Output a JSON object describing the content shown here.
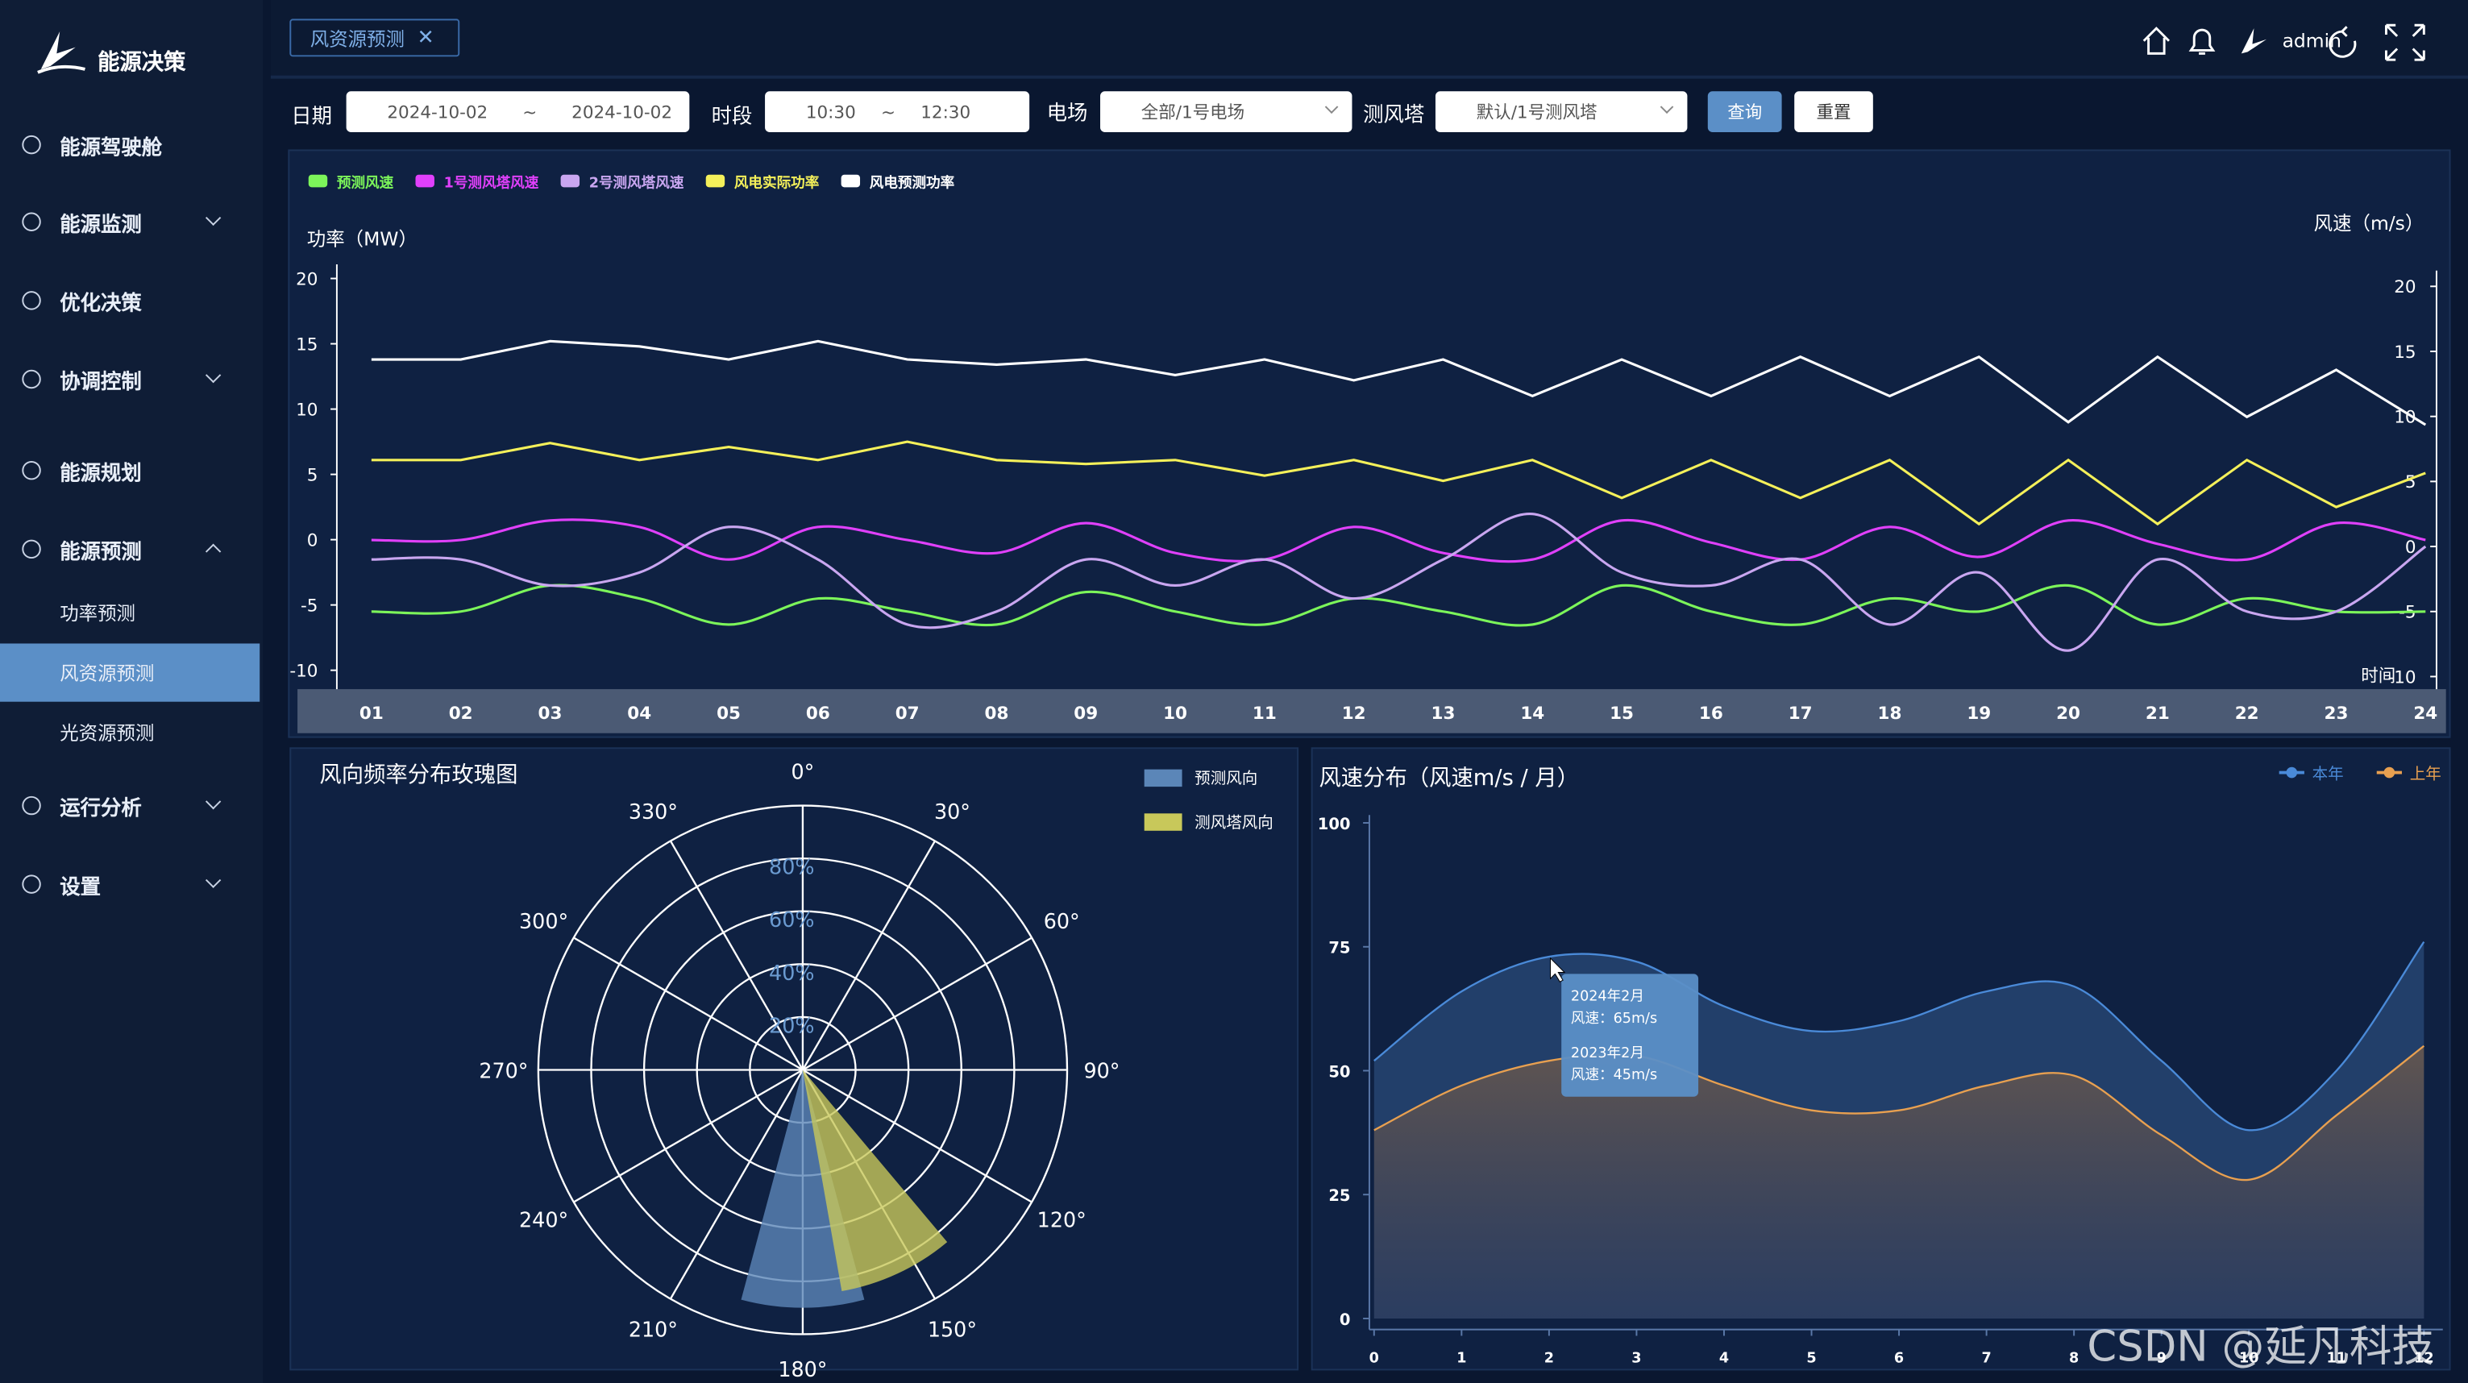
{
  "sidebar": {
    "brand": "能源决策",
    "menu": [
      {
        "label": "能源驾驶舱"
      },
      {
        "label": "能源监测"
      },
      {
        "label": "优化决策"
      },
      {
        "label": "协调控制"
      },
      {
        "label": "能源规划"
      },
      {
        "label": "能源预测",
        "children": [
          "功率预测",
          "风资源预测",
          "光资源预测"
        ]
      },
      {
        "label": "运行分析"
      },
      {
        "label": "设置"
      }
    ]
  },
  "tab": "风资源预测",
  "header": {
    "user": "admin"
  },
  "filters": {
    "date_label": "日期",
    "date_start": "2024-10-02",
    "date_sep": "~",
    "date_end": "2024-10-02",
    "time_label": "时段",
    "time_start": "10:30",
    "time_sep": "~",
    "time_end": "12:30",
    "farm_label": "电场",
    "farm": "全部/1号电场",
    "tower_label": "测风塔",
    "tower": "默认/1号测风塔",
    "query": "查询",
    "reset": "重置"
  },
  "chart_data": [
    {
      "type": "line",
      "y_label": "功率（MW）",
      "y2_label": "风速（m/s）",
      "x_label": "时间",
      "categories": [
        "01",
        "02",
        "03",
        "04",
        "05",
        "06",
        "07",
        "08",
        "09",
        "10",
        "11",
        "12",
        "13",
        "14",
        "15",
        "16",
        "17",
        "18",
        "19",
        "20",
        "21",
        "22",
        "23",
        "24"
      ],
      "ylim": [
        -10,
        20
      ],
      "yticks": [
        -10,
        -5,
        0,
        5,
        10,
        15,
        20
      ],
      "y2lim": [
        -10,
        20
      ],
      "y2ticks": [
        -10,
        -5,
        0,
        5,
        10,
        15,
        20
      ],
      "series": [
        {
          "name": "预测风速",
          "color": "#7cf55a",
          "axis": "y2",
          "smooth": true,
          "values": [
            -5,
            -5,
            -3,
            -4,
            -6,
            -4,
            -5,
            -6,
            -3.5,
            -5,
            -6,
            -4,
            -5,
            -6,
            -3,
            -5,
            -6,
            -4,
            -5,
            -3,
            -6,
            -4,
            -5,
            -5
          ]
        },
        {
          "name": "1号测风塔风速",
          "color": "#e040fb",
          "axis": "y2",
          "smooth": true,
          "values": [
            0.5,
            0.5,
            2,
            1.5,
            -1,
            1.5,
            0.5,
            -0.5,
            1.8,
            -0.5,
            -1,
            1.5,
            -0.5,
            -1,
            2,
            0.3,
            -1,
            1.5,
            -0.8,
            2,
            0.2,
            -1,
            1.8,
            0.5
          ]
        },
        {
          "name": "2号测风塔风速",
          "color": "#c9a6f0",
          "axis": "y2",
          "smooth": true,
          "values": [
            -1,
            -1,
            -3,
            -2,
            1.5,
            -1,
            -6,
            -5,
            -1,
            -3,
            -1,
            -4,
            -1,
            2.5,
            -2,
            -3,
            -1,
            -6,
            -2,
            -8,
            -1,
            -5,
            -5,
            0
          ]
        },
        {
          "name": "风电实际功率",
          "color": "#f4f05a",
          "values": [
            6.1,
            6.1,
            7.4,
            6.1,
            7.1,
            6.1,
            7.5,
            6.1,
            5.8,
            6.1,
            4.9,
            6.1,
            4.5,
            6.1,
            3.2,
            6.1,
            3.2,
            6.1,
            1.2,
            6.1,
            1.2,
            6.1,
            2.5,
            5.1
          ]
        },
        {
          "name": "风电预测功率",
          "color": "#ffffff",
          "values": [
            13.8,
            13.8,
            15.2,
            14.8,
            13.8,
            15.2,
            13.8,
            13.4,
            13.8,
            12.6,
            13.8,
            12.2,
            13.8,
            11,
            13.8,
            11,
            14,
            11,
            14,
            9,
            14,
            9.4,
            13,
            8.8
          ]
        }
      ]
    },
    {
      "type": "rose",
      "title": "风向频率分布玫瑰图",
      "rlim": [
        0,
        100
      ],
      "rticks": [
        {
          "value": 20,
          "label": "20%"
        },
        {
          "value": 40,
          "label": "40%"
        },
        {
          "value": 60,
          "label": "60%"
        },
        {
          "value": 80,
          "label": "80%"
        }
      ],
      "angle_ticks": [
        {
          "value": 0,
          "label": "0°"
        },
        {
          "value": 30,
          "label": "30°"
        },
        {
          "value": 60,
          "label": "60°"
        },
        {
          "value": 90,
          "label": "90°"
        },
        {
          "value": 120,
          "label": "120°"
        },
        {
          "value": 150,
          "label": "150°"
        },
        {
          "value": 180,
          "label": "180°"
        },
        {
          "value": 210,
          "label": "210°"
        },
        {
          "value": 240,
          "label": "240°"
        },
        {
          "value": 270,
          "label": "270°"
        },
        {
          "value": 300,
          "label": "300°"
        },
        {
          "value": 330,
          "label": "330°"
        }
      ],
      "series": [
        {
          "name": "预测风向",
          "color": "#5b86b8",
          "direction": 180,
          "value": 90
        },
        {
          "name": "测风塔风向",
          "color": "#c8c85a",
          "direction": 155,
          "value": 85
        }
      ]
    },
    {
      "type": "area",
      "title": "风速分布（风速m/s / 月）",
      "x": [
        0,
        1,
        2,
        3,
        4,
        5,
        6,
        7,
        8,
        9,
        10,
        11,
        12
      ],
      "xlim": [
        0,
        12
      ],
      "xticks": [
        0,
        1,
        2,
        3,
        4,
        5,
        6,
        7,
        8,
        9,
        10,
        11,
        12
      ],
      "ylim": [
        0,
        100
      ],
      "yticks": [
        0,
        25,
        50,
        75,
        100
      ],
      "series": [
        {
          "name": "本年",
          "color": "#4a8ad8",
          "values": [
            52,
            66,
            73,
            72,
            63,
            58,
            60,
            66,
            67,
            52,
            38,
            50,
            76
          ]
        },
        {
          "name": "上年",
          "color": "#e8a050",
          "values": [
            38,
            47,
            52,
            53,
            47,
            42,
            42,
            47,
            49,
            37,
            28,
            41,
            55
          ]
        }
      ],
      "tooltip": [
        "2024年2月",
        "风速：65m/s",
        "2023年2月",
        "风速：45m/s"
      ]
    }
  ],
  "watermark": "CSDN @延凡科技"
}
